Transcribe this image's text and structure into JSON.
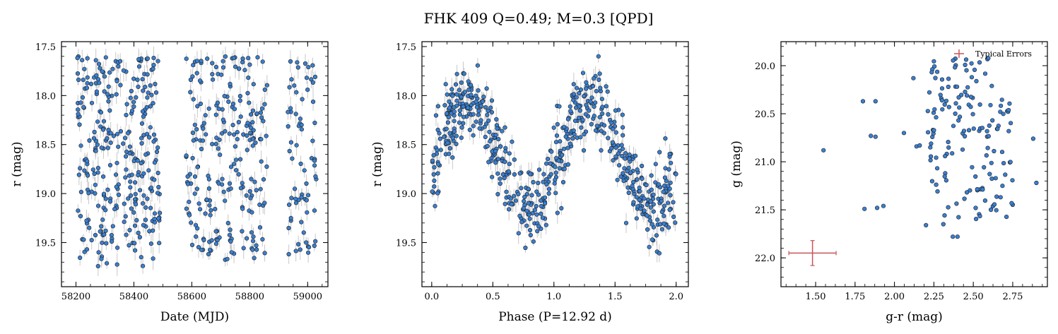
{
  "figure": {
    "title": "FHK 409  Q=0.49; M=0.3 [QPD]"
  },
  "colors": {
    "point_fill": "#3a7fd0",
    "point_edge": "#1a1a1a",
    "errorbar": "#c8c8c8",
    "typical_error": "#c8545a"
  },
  "chart_data": [
    {
      "type": "scatter",
      "xlabel": "Date (MJD)",
      "ylabel": "r (mag)",
      "xlim": [
        58150,
        59070
      ],
      "ylim": [
        19.95,
        17.45
      ],
      "y_inverted": true,
      "xticks": [
        58200,
        58400,
        58600,
        58800,
        59000
      ],
      "yticks": [
        17.5,
        18.0,
        18.5,
        19.0,
        19.5
      ],
      "xticklabels": [
        "58200",
        "58400",
        "58600",
        "58800",
        "59000"
      ],
      "yticklabels": [
        "17.5",
        "18.0",
        "18.5",
        "19.0",
        "19.5"
      ],
      "clusters": [
        {
          "x0": 58205,
          "x1": 58490,
          "y_min": 17.6,
          "y_max": 19.75,
          "n": 300
        },
        {
          "x0": 58580,
          "x1": 58860,
          "y_min": 17.6,
          "y_max": 19.7,
          "n": 230
        },
        {
          "x0": 58930,
          "x1": 59030,
          "y_min": 17.65,
          "y_max": 19.65,
          "n": 70
        }
      ]
    },
    {
      "type": "scatter",
      "xlabel": "Phase (P=12.92 d)",
      "ylabel": "r (mag)",
      "xlim": [
        -0.08,
        2.1
      ],
      "ylim": [
        19.95,
        17.45
      ],
      "y_inverted": true,
      "period_days": 12.92,
      "xticks": [
        0.0,
        0.5,
        1.0,
        1.5,
        2.0
      ],
      "yticks": [
        17.5,
        18.0,
        18.5,
        19.0,
        19.5
      ],
      "xticklabels": [
        "0.0",
        "0.5",
        "1.0",
        "1.5",
        "2.0"
      ],
      "yticklabels": [
        "17.5",
        "18.0",
        "18.5",
        "19.0",
        "19.5"
      ],
      "curve": {
        "mean": 18.6,
        "amplitude": 0.55,
        "phase_of_max": 0.3,
        "scatter": 0.3
      },
      "n": 600
    },
    {
      "type": "scatter",
      "xlabel": "g-r (mag)",
      "ylabel": "g (mag)",
      "xlim": [
        1.28,
        2.97
      ],
      "ylim": [
        22.3,
        19.75
      ],
      "y_inverted": true,
      "xticks": [
        1.5,
        1.75,
        2.0,
        2.25,
        2.5,
        2.75
      ],
      "yticks": [
        20.0,
        20.5,
        21.0,
        21.5,
        22.0
      ],
      "xticklabels": [
        "1.50",
        "1.75",
        "2.00",
        "2.25",
        "2.50",
        "2.75"
      ],
      "yticklabels": [
        "20.0",
        "20.5",
        "21.0",
        "21.5",
        "22.0"
      ],
      "legend": {
        "label": "Typical Errors",
        "placement": "top-right"
      },
      "typical_error": {
        "x": 1.48,
        "y": 21.95,
        "xerr": 0.15,
        "yerr": 0.13
      },
      "outliers": [
        {
          "x": 1.55,
          "y": 20.88
        },
        {
          "x": 1.8,
          "y": 20.37
        },
        {
          "x": 1.88,
          "y": 20.37
        },
        {
          "x": 1.85,
          "y": 20.73
        },
        {
          "x": 1.88,
          "y": 20.74
        },
        {
          "x": 1.81,
          "y": 21.49
        },
        {
          "x": 1.89,
          "y": 21.48
        },
        {
          "x": 1.93,
          "y": 21.46
        },
        {
          "x": 2.06,
          "y": 20.7
        },
        {
          "x": 2.12,
          "y": 20.13
        },
        {
          "x": 2.14,
          "y": 20.84
        },
        {
          "x": 2.16,
          "y": 20.83
        },
        {
          "x": 2.88,
          "y": 20.76
        },
        {
          "x": 2.9,
          "y": 21.22
        },
        {
          "x": 2.2,
          "y": 21.66
        },
        {
          "x": 2.31,
          "y": 21.65
        },
        {
          "x": 2.37,
          "y": 21.78
        },
        {
          "x": 2.4,
          "y": 21.78
        }
      ],
      "cluster": {
        "x0": 2.18,
        "x1": 2.78,
        "y_min": 19.92,
        "y_max": 21.6,
        "n": 150
      }
    }
  ]
}
